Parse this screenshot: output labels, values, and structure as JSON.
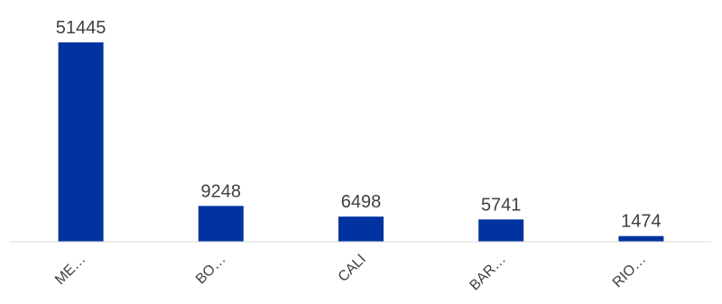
{
  "chart_data": {
    "type": "bar",
    "categories": [
      "ME…",
      "BO…",
      "CALI",
      "BAR…",
      "RIO…"
    ],
    "values": [
      51445,
      9248,
      6498,
      5741,
      1474
    ],
    "title": "",
    "xlabel": "",
    "ylabel": "",
    "ylim": [
      0,
      51445
    ],
    "grid": false,
    "legend": "none",
    "data_labels": true,
    "colors": {
      "bar": "#0033a0",
      "baseline": "#d9d9d9",
      "text": "#404040"
    }
  }
}
